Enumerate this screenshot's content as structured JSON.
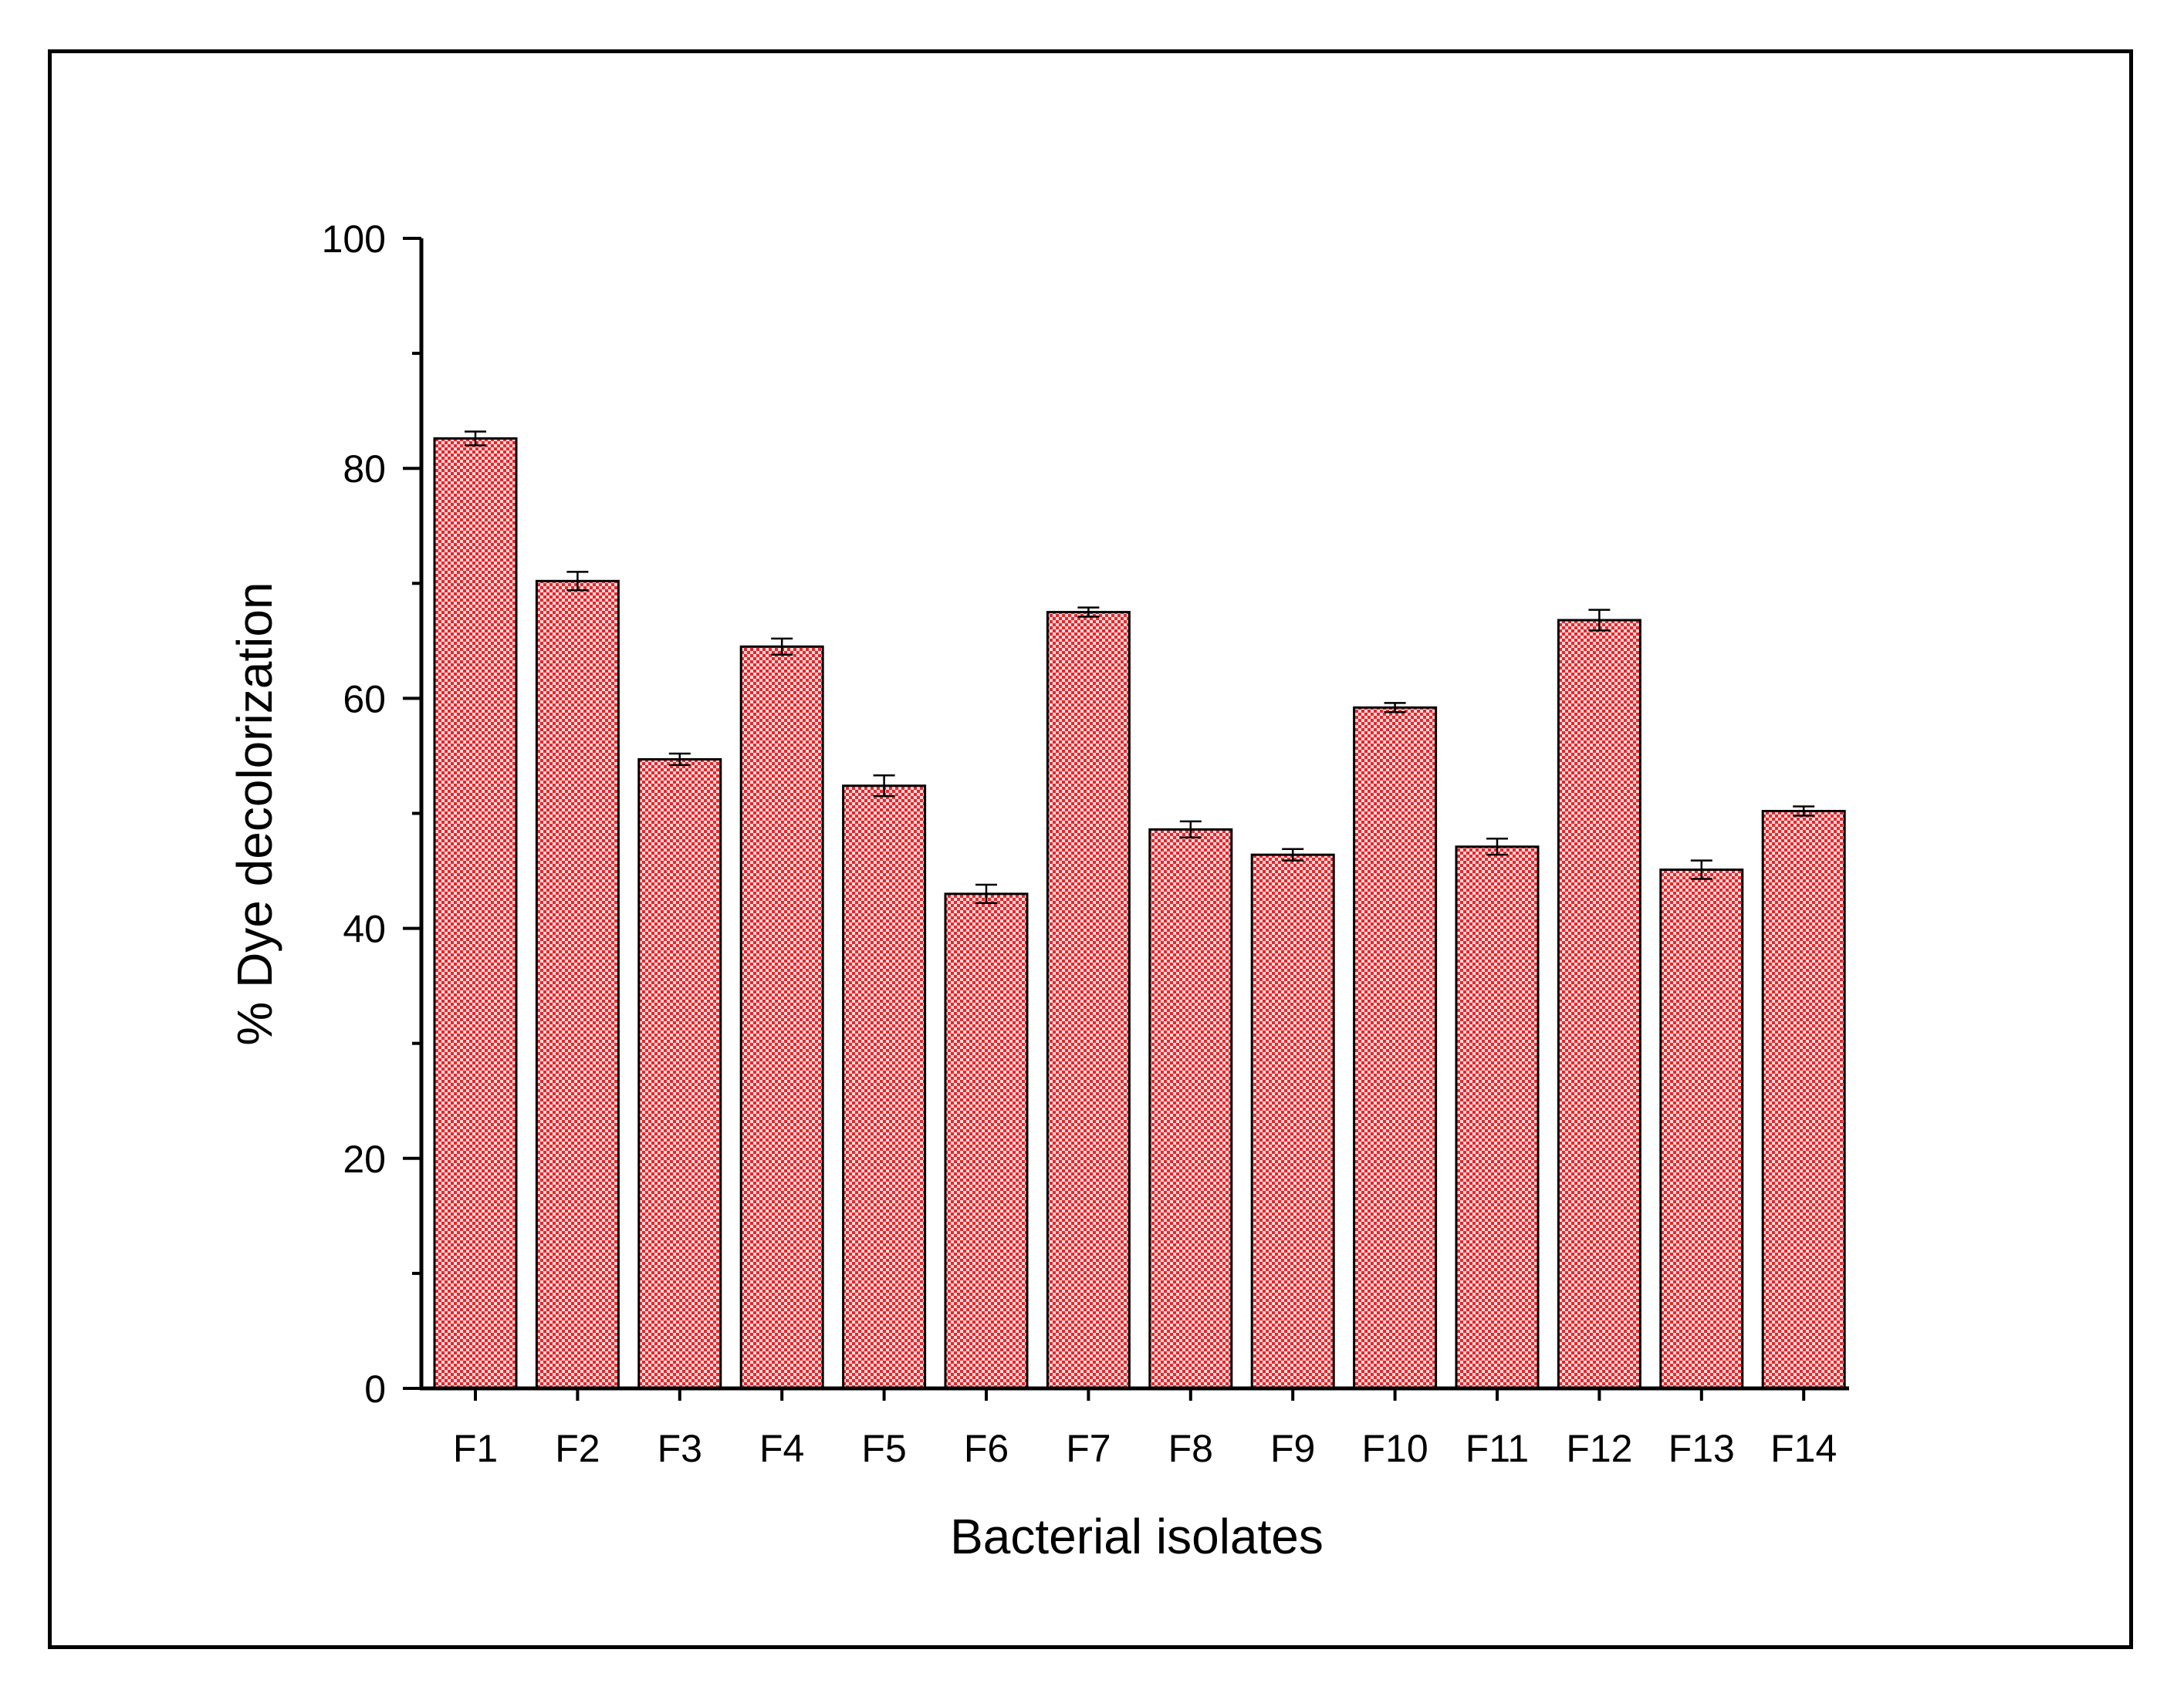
{
  "chart_data": {
    "type": "bar",
    "title": "",
    "xlabel": "Bacterial isolates",
    "ylabel": "% Dye decolorization",
    "ylim": [
      0,
      100
    ],
    "yticks": [
      "0",
      "20",
      "40",
      "60",
      "80",
      "100"
    ],
    "ytick_values": [
      0,
      20,
      40,
      60,
      80,
      100
    ],
    "categories": [
      "F1",
      "F2",
      "F3",
      "F4",
      "F5",
      "F6",
      "F7",
      "F8",
      "F9",
      "F10",
      "F11",
      "F12",
      "F13",
      "F14"
    ],
    "values": [
      82.6,
      70.2,
      54.7,
      64.5,
      52.4,
      43.0,
      67.5,
      48.6,
      46.4,
      59.2,
      47.1,
      66.8,
      45.1,
      50.2
    ],
    "errors": [
      0.6,
      0.8,
      0.5,
      0.7,
      0.9,
      0.8,
      0.4,
      0.7,
      0.5,
      0.4,
      0.7,
      0.9,
      0.8,
      0.4
    ],
    "bar_color": "#e8262b",
    "bar_pattern": "checkered",
    "edge_color": "#000000",
    "grid": false,
    "legend": "none"
  }
}
